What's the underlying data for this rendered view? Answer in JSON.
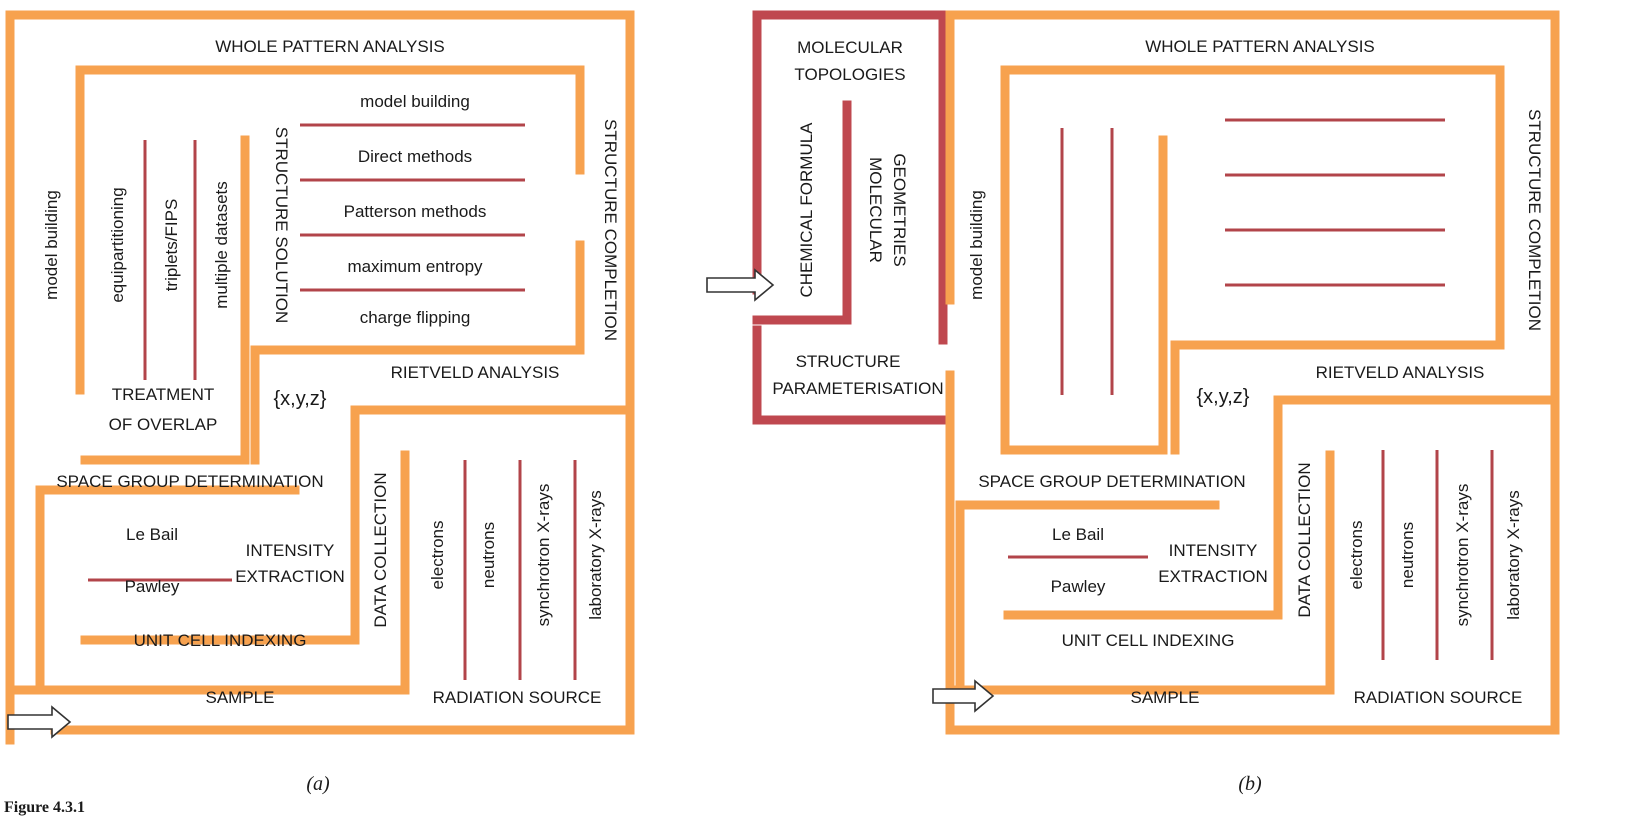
{
  "figure_label": "Figure 4.3.1",
  "colors": {
    "pathway": "#F7A24F",
    "branch": "#B2444A",
    "extra": "#BF484F"
  },
  "panel_a": {
    "caption": "(a)",
    "whole_pattern": "WHOLE PATTERN ANALYSIS",
    "structure_completion": "STRUCTURE COMPLETION",
    "structure_solution": "STRUCTURE SOLUTION",
    "methods": [
      "model building",
      "Direct methods",
      "Patterson methods",
      "maximum entropy",
      "charge flipping"
    ],
    "model_building": "model building",
    "equipartitioning": "equipartitioning",
    "triplets": "triplets/FIPS",
    "multiple_datasets": "multiple datasets",
    "treatment_1": "TREATMENT",
    "treatment_2": "OF OVERLAP",
    "xyz": "{x,y,z}",
    "rietveld": "RIETVELD ANALYSIS",
    "space_group": "SPACE GROUP DETERMINATION",
    "le_bail": "Le Bail",
    "pawley": "Pawley",
    "intensity_1": "INTENSITY",
    "intensity_2": "EXTRACTION",
    "unit_cell": "UNIT CELL INDEXING",
    "data_collection": "DATA COLLECTION",
    "sources": [
      "electrons",
      "neutrons",
      "synchrotron X-rays",
      "laboratory X-rays"
    ],
    "sample": "SAMPLE",
    "radiation": "RADIATION SOURCE"
  },
  "panel_b": {
    "caption": "(b)",
    "whole_pattern": "WHOLE PATTERN ANALYSIS",
    "structure_completion": "STRUCTURE COMPLETION",
    "model_building": "model building",
    "molecular_topologies_1": "MOLECULAR",
    "molecular_topologies_2": "TOPOLOGIES",
    "chemical_formula": "CHEMICAL FORMULA",
    "molecular_geometries_1": "MOLECULAR",
    "molecular_geometries_2": "GEOMETRIES",
    "structure_param_1": "STRUCTURE",
    "structure_param_2": "PARAMETERISATION",
    "xyz": "{x,y,z}",
    "rietveld": "RIETVELD ANALYSIS",
    "space_group": "SPACE GROUP DETERMINATION",
    "le_bail": "Le Bail",
    "pawley": "Pawley",
    "intensity_1": "INTENSITY",
    "intensity_2": "EXTRACTION",
    "unit_cell": "UNIT CELL INDEXING",
    "data_collection": "DATA COLLECTION",
    "sources": [
      "electrons",
      "neutrons",
      "synchrotron X-rays",
      "laboratory X-rays"
    ],
    "sample": "SAMPLE",
    "radiation": "RADIATION SOURCE"
  }
}
